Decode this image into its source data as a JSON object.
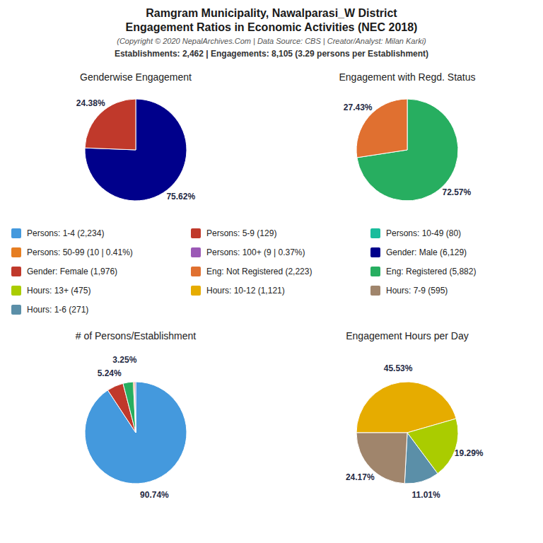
{
  "title": "Ramgram Municipality, Nawalparasi_W District\nEngagement Ratios in Economic Activities (NEC 2018)",
  "subtitle": "(Copyright © 2020 NepalArchives.Com | Data Source: CBS | Creator/Analyst: Milan Karki)",
  "annotations": [
    "Establishments: 2,462 | Engagements: 8,105 (3.29 persons per Establishment)"
  ],
  "chart_data": [
    {
      "type": "pie",
      "title": "Genderwise Engagement",
      "values": [
        75.62,
        24.38
      ],
      "colors": [
        "#00008B",
        "#C0392B"
      ],
      "value_labels": [
        "75.62%",
        "24.38%"
      ],
      "data_labels": true
    },
    {
      "type": "pie",
      "title": "Engagement with Regd. Status",
      "values": [
        72.57,
        27.43
      ],
      "colors": [
        "#27AE60",
        "#E07030"
      ],
      "value_labels": [
        "72.57%",
        "27.43%"
      ],
      "data_labels": true
    },
    {
      "type": "pie",
      "title": "# of Persons/Establishment",
      "values": [
        90.74,
        5.24,
        3.25,
        0.41,
        0.37
      ],
      "colors": [
        "#4499DD",
        "#C0392B",
        "#27AE60",
        "#E67E22",
        "#9B59B6"
      ],
      "value_labels": [
        "90.74%",
        "5.24%",
        "3.25%",
        null,
        null
      ],
      "data_labels": true
    },
    {
      "type": "pie",
      "title": "Engagement Hours per Day",
      "values": [
        45.53,
        19.29,
        11.01,
        24.17
      ],
      "colors": [
        "#E6AC00",
        "#AACC00",
        "#5B8FA8",
        "#A0856C"
      ],
      "value_labels": [
        "45.53%",
        "19.29%",
        "11.01%",
        "24.17%"
      ],
      "data_labels": true
    }
  ],
  "legend_entries": [
    {
      "label": "Persons: 1-4 (2,234)",
      "color": "#4499DD"
    },
    {
      "label": "Persons: 5-9 (129)",
      "color": "#C0392B"
    },
    {
      "label": "Persons: 10-49 (80)",
      "color": "#1ABC9C"
    },
    {
      "label": "Persons: 50-99 (10 | 0.41%)",
      "color": "#E67E22"
    },
    {
      "label": "Persons: 100+ (9 | 0.37%)",
      "color": "#9B59B6"
    },
    {
      "label": "Gender: Male (6,129)",
      "color": "#00008B"
    },
    {
      "label": "Gender: Female (1,976)",
      "color": "#C0392B"
    },
    {
      "label": "Eng: Not Registered (2,223)",
      "color": "#E07030"
    },
    {
      "label": "Eng: Registered (5,882)",
      "color": "#27AE60"
    },
    {
      "label": "Hours: 13+ (475)",
      "color": "#AACC00"
    },
    {
      "label": "Hours: 10-12 (1,121)",
      "color": "#E6AC00"
    },
    {
      "label": "Hours: 7-9 (595)",
      "color": "#A0856C"
    },
    {
      "label": "Hours: 1-6 (271)",
      "color": "#5B8FA8"
    }
  ]
}
